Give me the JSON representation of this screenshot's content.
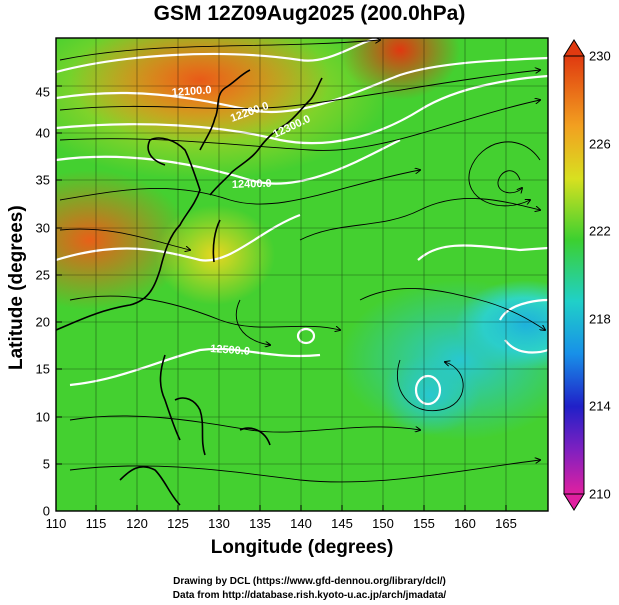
{
  "title": "GSM 12Z09Aug2025 (200.0hPa)",
  "axes": {
    "xlabel": "Longitude (degrees)",
    "ylabel": "Latitude  (degrees)",
    "xticks": [
      "110",
      "115",
      "120",
      "125",
      "130",
      "135",
      "140",
      "145",
      "150",
      "155",
      "160",
      "165"
    ],
    "yticks": [
      "0",
      "5",
      "10",
      "15",
      "20",
      "25",
      "30",
      "35",
      "40",
      "45"
    ],
    "xrange": [
      110,
      170
    ],
    "yrange": [
      0,
      50
    ]
  },
  "colorbar": {
    "ticks": [
      "210",
      "214",
      "218",
      "222",
      "226",
      "230"
    ],
    "range": [
      210,
      230
    ]
  },
  "contour_labels": [
    "12100.0",
    "12200.0",
    "12300.0",
    "12400.0",
    "12500.0"
  ],
  "credits": {
    "line1": "Drawing by DCL (https://www.gfd-dennou.org/library/dcl/)",
    "line2": "Data from http://database.rish.kyoto-u.ac.jp/arch/jmadata/"
  },
  "colors": {
    "warm": "#e03a10",
    "orange": "#f2a020",
    "yellow": "#d8e020",
    "green": "#3cd030",
    "cyan": "#20d0c8",
    "blue": "#1890e8",
    "coast": "#000000",
    "contour": "#ffffff"
  }
}
